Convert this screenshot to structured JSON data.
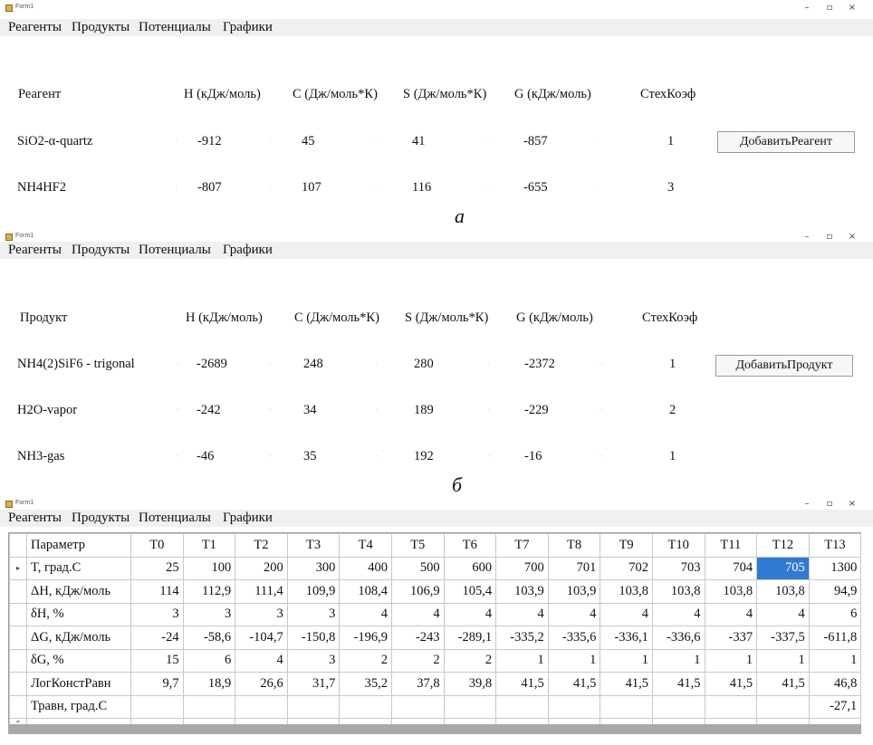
{
  "panel_a": {
    "window_title": "Form1",
    "menu": [
      "Реагенты",
      "Продукты",
      "Потенциалы",
      "Графики"
    ],
    "headers": {
      "name": "Реагент",
      "H": "H (кДж/моль)",
      "C": "C (Дж/моль*К)",
      "S": "S (Дж/моль*К)",
      "G": "G (кДж/моль)",
      "coef": "СтехКоэф"
    },
    "rows": [
      {
        "name": "SiO2-α-quartz",
        "H": "-912",
        "C": "45",
        "S": "41",
        "G": "-857",
        "coef": "1"
      },
      {
        "name": "NH4HF2",
        "H": "-807",
        "C": "107",
        "S": "116",
        "G": "-655",
        "coef": "3"
      }
    ],
    "button": "ДобавитьРеагент",
    "caption": "а"
  },
  "panel_b": {
    "window_title": "Form1",
    "menu": [
      "Реагенты",
      "Продукты",
      "Потенциалы",
      "Графики"
    ],
    "headers": {
      "name": "Продукт",
      "H": "H (кДж/моль)",
      "C": "C (Дж/моль*К)",
      "S": "S (Дж/моль*К)",
      "G": "G (кДж/моль)",
      "coef": "СтехКоэф"
    },
    "rows": [
      {
        "name": "NH4(2)SiF6 - trigonal",
        "H": "-2689",
        "C": "248",
        "S": "280",
        "G": "-2372",
        "coef": "1"
      },
      {
        "name": "H2O-vapor",
        "H": "-242",
        "C": "34",
        "S": "189",
        "G": "-229",
        "coef": "2"
      },
      {
        "name": "NH3-gas",
        "H": "-46",
        "C": "35",
        "S": "192",
        "G": "-16",
        "coef": "1"
      }
    ],
    "button": "ДобавитьПродукт",
    "caption": "б"
  },
  "panel_c": {
    "window_title": "Form1",
    "menu": [
      "Реагенты",
      "Продукты",
      "Потенциалы",
      "Графики"
    ],
    "columns": [
      "Параметр",
      "T0",
      "T1",
      "T2",
      "T3",
      "T4",
      "T5",
      "T6",
      "T7",
      "T8",
      "T9",
      "T10",
      "T11",
      "T12",
      "T13"
    ],
    "rows": [
      [
        "T, град.С",
        "25",
        "100",
        "200",
        "300",
        "400",
        "500",
        "600",
        "700",
        "701",
        "702",
        "703",
        "704",
        "705",
        "1300"
      ],
      [
        "ΔH, кДж/моль",
        "114",
        "112,9",
        "111,4",
        "109,9",
        "108,4",
        "106,9",
        "105,4",
        "103,9",
        "103,9",
        "103,8",
        "103,8",
        "103,8",
        "103,8",
        "94,9"
      ],
      [
        "δH, %",
        "3",
        "3",
        "3",
        "3",
        "4",
        "4",
        "4",
        "4",
        "4",
        "4",
        "4",
        "4",
        "4",
        "6"
      ],
      [
        "ΔG, кДж/моль",
        "-24",
        "-58,6",
        "-104,7",
        "-150,8",
        "-196,9",
        "-243",
        "-289,1",
        "-335,2",
        "-335,6",
        "-336,1",
        "-336,6",
        "-337",
        "-337,5",
        "-611,8"
      ],
      [
        "δG, %",
        "15",
        "6",
        "4",
        "3",
        "2",
        "2",
        "2",
        "1",
        "1",
        "1",
        "1",
        "1",
        "1",
        "1"
      ],
      [
        "ЛогКонстРавн",
        "9,7",
        "18,9",
        "26,6",
        "31,7",
        "35,2",
        "37,8",
        "39,8",
        "41,5",
        "41,5",
        "41,5",
        "41,5",
        "41,5",
        "41,5",
        "46,8"
      ],
      [
        "Травн, град.С",
        "",
        "",
        "",
        "",
        "",
        "",
        "",
        "",
        "",
        "",
        "",
        "",
        "",
        "-27,1"
      ]
    ],
    "selected_cell": {
      "row": 0,
      "col": 13
    },
    "row_marker": "▸",
    "new_row_marker": "*"
  },
  "window_controls": {
    "minimize": "–",
    "maximize": "▫",
    "close": "×"
  },
  "spin_glyph": "·"
}
